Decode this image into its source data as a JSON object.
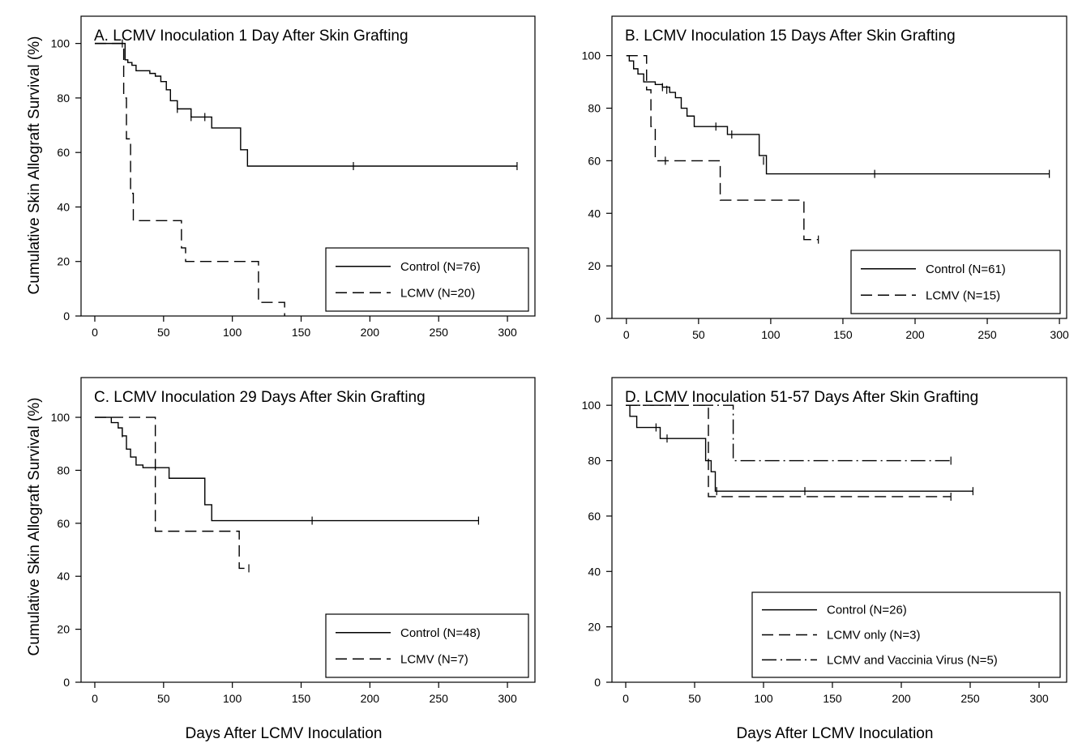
{
  "figure": {
    "ylabel_top": "Cumulative Skin Allograft Survival (%)",
    "ylabel_bottom": "Cumulative Skin Allograft Survival (%)",
    "xlabel_left": "Days After LCMV Inoculation",
    "xlabel_right": "Days After LCMV Inoculation"
  },
  "chart_data": [
    {
      "type": "line",
      "panel": "A",
      "title": "A. LCMV Inoculation 1 Day After Skin Grafting",
      "xlim": [
        -10,
        320
      ],
      "ylim": [
        0,
        110
      ],
      "xticks": [
        0,
        50,
        100,
        150,
        200,
        250,
        300
      ],
      "yticks": [
        0,
        20,
        40,
        60,
        80,
        100
      ],
      "legend_position": "bottom-right",
      "series": [
        {
          "name": "Control (N=76)",
          "style": "solid",
          "x": [
            0,
            20,
            22,
            24,
            27,
            30,
            35,
            40,
            44,
            48,
            52,
            55,
            60,
            70,
            85,
            103,
            106,
            111,
            188,
            307
          ],
          "y": [
            100,
            100,
            94,
            93,
            92,
            90,
            90,
            89,
            88,
            86,
            83,
            79,
            76,
            73,
            69,
            69,
            61,
            55,
            55,
            55
          ],
          "censored": [
            [
              20,
              100
            ],
            [
              60,
              76
            ],
            [
              70,
              73
            ],
            [
              80,
              73
            ],
            [
              188,
              55
            ],
            [
              307,
              55
            ]
          ]
        },
        {
          "name": "LCMV (N=20)",
          "style": "dashed",
          "x": [
            0,
            19,
            21,
            23,
            26,
            28,
            31,
            60,
            63,
            66,
            70,
            117,
            119,
            136,
            138
          ],
          "y": [
            100,
            100,
            80,
            65,
            45,
            35,
            35,
            35,
            25,
            20,
            20,
            20,
            5,
            5,
            0
          ],
          "censored": []
        }
      ]
    },
    {
      "type": "line",
      "panel": "B",
      "title": "B. LCMV Inoculation 15 Days After Skin Grafting",
      "xlim": [
        -10,
        305
      ],
      "ylim": [
        0,
        115
      ],
      "xticks": [
        0,
        50,
        100,
        150,
        200,
        250,
        300
      ],
      "yticks": [
        0,
        20,
        40,
        60,
        80,
        100
      ],
      "legend_position": "bottom-right",
      "series": [
        {
          "name": "Control (N=61)",
          "style": "solid",
          "x": [
            0,
            2,
            5,
            8,
            12,
            16,
            20,
            25,
            30,
            34,
            38,
            42,
            47,
            60,
            70,
            88,
            92,
            97,
            172,
            293
          ],
          "y": [
            100,
            98,
            95,
            93,
            90,
            90,
            89,
            88,
            86,
            84,
            80,
            77,
            73,
            73,
            70,
            70,
            62,
            55,
            55,
            55
          ],
          "censored": [
            [
              25,
              88
            ],
            [
              28,
              87
            ],
            [
              62,
              73
            ],
            [
              73,
              70
            ],
            [
              95,
              60
            ],
            [
              172,
              55
            ],
            [
              293,
              55
            ]
          ]
        },
        {
          "name": "LCMV (N=15)",
          "style": "dashed",
          "x": [
            0,
            12,
            14,
            17,
            20,
            63,
            65,
            120,
            123,
            133
          ],
          "y": [
            100,
            100,
            87,
            73,
            60,
            60,
            45,
            45,
            30,
            30
          ],
          "censored": [
            [
              27,
              60
            ],
            [
              133,
              30
            ]
          ]
        }
      ]
    },
    {
      "type": "line",
      "panel": "C",
      "title": "C. LCMV Inoculation 29 Days After Skin Grafting",
      "xlim": [
        -10,
        320
      ],
      "ylim": [
        0,
        115
      ],
      "xticks": [
        0,
        50,
        100,
        150,
        200,
        250,
        300
      ],
      "yticks": [
        0,
        20,
        40,
        60,
        80,
        100
      ],
      "legend_position": "bottom-right",
      "series": [
        {
          "name": "Control (N=48)",
          "style": "solid",
          "x": [
            0,
            5,
            12,
            17,
            20,
            23,
            26,
            30,
            35,
            50,
            54,
            75,
            80,
            85,
            158,
            279
          ],
          "y": [
            100,
            100,
            98,
            96,
            93,
            88,
            85,
            82,
            81,
            81,
            77,
            77,
            67,
            61,
            61,
            61
          ],
          "censored": [
            [
              20,
              94
            ],
            [
              158,
              61
            ],
            [
              279,
              61
            ]
          ]
        },
        {
          "name": "LCMV (N=7)",
          "style": "dashed",
          "x": [
            0,
            42,
            44,
            103,
            105,
            112
          ],
          "y": [
            100,
            100,
            57,
            57,
            43,
            43
          ],
          "censored": [
            [
              112,
              43
            ]
          ]
        }
      ]
    },
    {
      "type": "line",
      "panel": "D",
      "title": "D. LCMV Inoculation 51-57 Days After Skin Grafting",
      "xlim": [
        -10,
        320
      ],
      "ylim": [
        0,
        110
      ],
      "xticks": [
        0,
        50,
        100,
        150,
        200,
        250,
        300
      ],
      "yticks": [
        0,
        20,
        40,
        60,
        80,
        100
      ],
      "legend_position": "bottom-right",
      "series": [
        {
          "name": "Control (N=26)",
          "style": "solid",
          "x": [
            0,
            3,
            8,
            25,
            55,
            58,
            62,
            65,
            130,
            252
          ],
          "y": [
            100,
            96,
            92,
            88,
            88,
            80,
            76,
            69,
            69,
            69
          ],
          "censored": [
            [
              22,
              92
            ],
            [
              30,
              88
            ],
            [
              66,
              69
            ],
            [
              130,
              69
            ],
            [
              252,
              69
            ]
          ]
        },
        {
          "name": "LCMV only (N=3)",
          "style": "dashed",
          "x": [
            0,
            58,
            60,
            236
          ],
          "y": [
            100,
            100,
            67,
            67
          ],
          "censored": [
            [
              236,
              67
            ]
          ]
        },
        {
          "name": "LCMV and Vaccinia Virus (N=5)",
          "style": "dashdot",
          "x": [
            0,
            76,
            78,
            236
          ],
          "y": [
            100,
            100,
            80,
            80
          ],
          "censored": [
            [
              236,
              80
            ]
          ]
        }
      ]
    }
  ]
}
